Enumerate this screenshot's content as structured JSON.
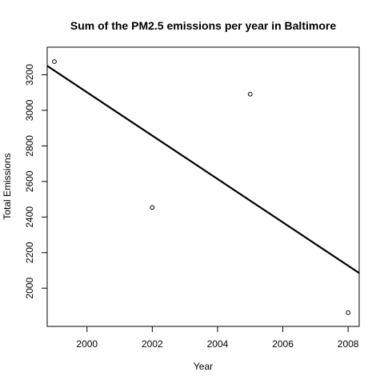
{
  "chart_data": {
    "type": "scatter",
    "title": "Sum of the PM2.5 emissions per year in Baltimore",
    "xlabel": "Year",
    "ylabel": "Total Emissions",
    "xlim": [
      1998.78,
      2008.34
    ],
    "ylim": [
      1785,
      3355
    ],
    "grid": false,
    "series": [
      {
        "name": "Total Emissions",
        "x": [
          1999,
          2002,
          2005,
          2008
        ],
        "y": [
          3274,
          2454,
          3091,
          1862
        ]
      }
    ],
    "trend_line": {
      "x": [
        1998.78,
        2008.34
      ],
      "y": [
        3250,
        2085
      ]
    },
    "x_ticks": [
      2000,
      2002,
      2004,
      2006,
      2008
    ],
    "x_tick_labels": [
      "2000",
      "2002",
      "2004",
      "2006",
      "2008"
    ],
    "y_ticks": [
      2000,
      2200,
      2400,
      2600,
      2800,
      3000,
      3200
    ],
    "y_tick_labels": [
      "2000",
      "2200",
      "2400",
      "2600",
      "2800",
      "3000",
      "3200"
    ]
  }
}
